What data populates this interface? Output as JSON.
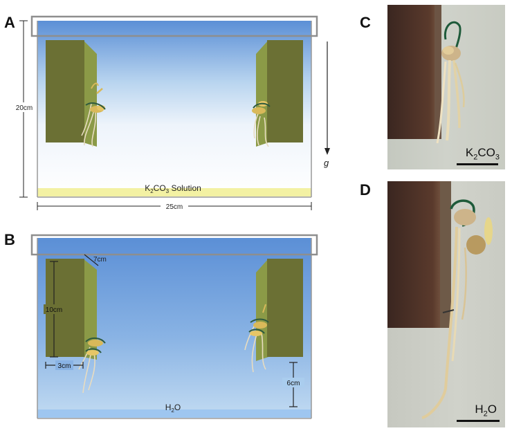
{
  "panels": {
    "A": {
      "label": "A",
      "dim_height": "20cm",
      "dim_width": "25cm",
      "gravity": "g",
      "solution_prefix": "K",
      "solution_sub1": "2",
      "solution_mid": "CO",
      "solution_sub2": "3",
      "solution_suffix": " Solution"
    },
    "B": {
      "label": "B",
      "dim_depth": "7cm",
      "dim_block_height": "10cm",
      "dim_block_width": "3cm",
      "dim_gap": "6cm",
      "water_prefix": "H",
      "water_sub": "2",
      "water_suffix": "O"
    },
    "C": {
      "label": "C",
      "caption_prefix": "K",
      "caption_sub1": "2",
      "caption_mid": "CO",
      "caption_sub2": "3"
    },
    "D": {
      "label": "D",
      "caption_prefix": "H",
      "caption_sub": "2",
      "caption_suffix": "O"
    }
  },
  "colors": {
    "water_top": "#5b8fd6",
    "water_mid": "#a9c9ec",
    "k2co3_layer": "#f3f1a3",
    "block_front": "#6b7034",
    "block_side": "#8b9a47",
    "photo_bg": "#c9ccc2"
  }
}
